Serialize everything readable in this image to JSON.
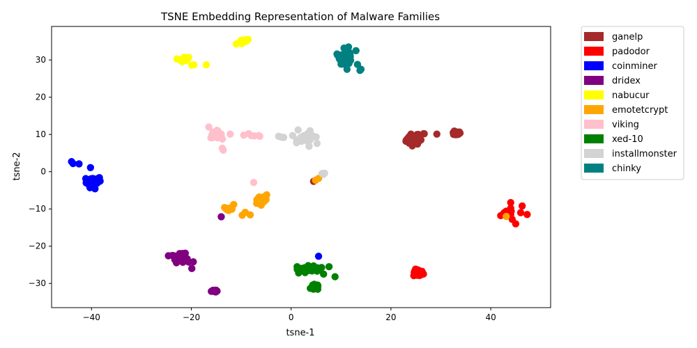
{
  "chart_data": {
    "type": "scatter",
    "title": "TSNE Embedding Representation of Malware Families",
    "xlabel": "tsne-1",
    "ylabel": "tsne-2",
    "xlim": [
      -48,
      52
    ],
    "ylim": [
      -36.5,
      39
    ],
    "xticks": [
      -40,
      -20,
      0,
      20,
      40
    ],
    "yticks": [
      -30,
      -20,
      -10,
      0,
      10,
      20,
      30
    ],
    "grid": false,
    "legend_position": "outside-top-right",
    "series": [
      {
        "name": "ganelp",
        "color": "#a52a2a",
        "clusters": [
          [
            24.5,
            8.5,
            1.2,
            1.0,
            40
          ],
          [
            25.5,
            9.5,
            1.2,
            0.8,
            15
          ],
          [
            33,
            10.3,
            0.8,
            0.4,
            20
          ]
        ],
        "points": [
          [
            29.2,
            10.1
          ],
          [
            4.5,
            -2.6
          ]
        ]
      },
      {
        "name": "padodor",
        "color": "#ff0000",
        "clusters": [
          [
            25.5,
            -27.2,
            0.8,
            0.8,
            40
          ]
        ],
        "points": [
          [
            42,
            -11.8
          ],
          [
            42.7,
            -11
          ],
          [
            43.1,
            -10.6
          ],
          [
            44,
            -8.3
          ],
          [
            44,
            -9.8
          ],
          [
            44.1,
            -10.6
          ],
          [
            43.8,
            -11
          ],
          [
            44,
            -11.5
          ],
          [
            44.3,
            -12.8
          ],
          [
            45,
            -14
          ],
          [
            46,
            -11
          ],
          [
            46.3,
            -9.2
          ],
          [
            47.3,
            -11.5
          ],
          [
            42.5,
            -11.4
          ]
        ]
      },
      {
        "name": "coinminer",
        "color": "#0000ff",
        "clusters": [
          [
            -39.5,
            -2.5,
            1.2,
            1.0,
            60
          ]
        ],
        "points": [
          [
            -44,
            2.7
          ],
          [
            -43.7,
            2.2
          ],
          [
            -42.5,
            2.1
          ],
          [
            -40.2,
            1.1
          ],
          [
            -40.3,
            -4.3
          ],
          [
            -39.3,
            -4.6
          ],
          [
            5.5,
            -22.7
          ]
        ]
      },
      {
        "name": "dridex",
        "color": "#800080",
        "clusters": [
          [
            -22.3,
            -23.2,
            1.1,
            0.9,
            40
          ],
          [
            -15.5,
            -32,
            0.4,
            0.3,
            15
          ]
        ],
        "points": [
          [
            -23.8,
            -22.5
          ],
          [
            -21.2,
            -21.9
          ],
          [
            -19.6,
            -24.2
          ],
          [
            -19.9,
            -26
          ],
          [
            -14,
            -12.1
          ]
        ]
      },
      {
        "name": "nabucur",
        "color": "#ffff00",
        "clusters": [
          [
            -21.5,
            30.2,
            0.8,
            0.5,
            20
          ],
          [
            -9.5,
            35,
            0.6,
            0.3,
            15
          ]
        ],
        "points": [
          [
            -19.5,
            28.7
          ],
          [
            -19.9,
            28.6
          ],
          [
            -17,
            28.7
          ],
          [
            -11,
            34.3
          ],
          [
            -8.6,
            35.5
          ]
        ]
      },
      {
        "name": "emotetcrypt",
        "color": "#ffa500",
        "clusters": [
          [
            -12.5,
            -10,
            0.8,
            0.5,
            15
          ],
          [
            -6,
            -7.5,
            1.0,
            0.6,
            20
          ]
        ],
        "points": [
          [
            -11.5,
            -8.8
          ],
          [
            -9.8,
            -11.7
          ],
          [
            -9.2,
            -10.9
          ],
          [
            -8.2,
            -11.6
          ],
          [
            -6.9,
            -8.5
          ],
          [
            -6,
            -9
          ],
          [
            -4.9,
            -6.2
          ],
          [
            4.9,
            -2.3
          ],
          [
            5.5,
            -1.8
          ],
          [
            43.1,
            -12
          ]
        ]
      },
      {
        "name": "viking",
        "color": "#ffc0cb",
        "clusters": [
          [
            -15,
            10,
            0.9,
            0.8,
            45
          ]
        ],
        "points": [
          [
            -16.5,
            12
          ],
          [
            -12.2,
            10.1
          ],
          [
            -13.8,
            6.3
          ],
          [
            -13.6,
            5.8
          ],
          [
            -9.5,
            9.8
          ],
          [
            -8.5,
            10.2
          ],
          [
            -8,
            9.7
          ],
          [
            -7.4,
            9.6
          ],
          [
            -6.5,
            9.7
          ],
          [
            -6.3,
            9.5
          ],
          [
            -7.5,
            -2.9
          ]
        ]
      },
      {
        "name": "xed-10",
        "color": "#008000",
        "clusters": [
          [
            4,
            -26.2,
            2.2,
            0.5,
            45
          ],
          [
            4.8,
            -31,
            0.6,
            0.6,
            30
          ]
        ],
        "points": [
          [
            1.2,
            -25.5
          ],
          [
            1.5,
            -27.2
          ],
          [
            2.8,
            -27.1
          ],
          [
            4.5,
            -25.3
          ],
          [
            6.5,
            -27.5
          ],
          [
            7.6,
            -25.5
          ],
          [
            8.8,
            -28.2
          ]
        ]
      },
      {
        "name": "installmonster",
        "color": "#d3d3d3",
        "clusters": [
          [
            3,
            9,
            1.4,
            0.8,
            45
          ]
        ],
        "points": [
          [
            -2.5,
            9.5
          ],
          [
            -2,
            9.3
          ],
          [
            -1.5,
            9.2
          ],
          [
            0.3,
            9.7
          ],
          [
            1.4,
            11.2
          ],
          [
            3.8,
            11
          ],
          [
            3.6,
            6.8
          ],
          [
            5.2,
            7.6
          ],
          [
            6.2,
            -0.5
          ],
          [
            6.7,
            -0.4
          ],
          [
            6.5,
            -0.7
          ]
        ]
      },
      {
        "name": "chinky",
        "color": "#008080",
        "clusters": [
          [
            11,
            30.5,
            1.0,
            1.3,
            55
          ]
        ],
        "points": [
          [
            9.2,
            31.6
          ],
          [
            10.6,
            33.2
          ],
          [
            11.5,
            33.5
          ],
          [
            13,
            32.5
          ],
          [
            13.3,
            28.8
          ],
          [
            13.8,
            27.2
          ],
          [
            14,
            27.5
          ],
          [
            11.2,
            27.5
          ]
        ]
      }
    ]
  }
}
